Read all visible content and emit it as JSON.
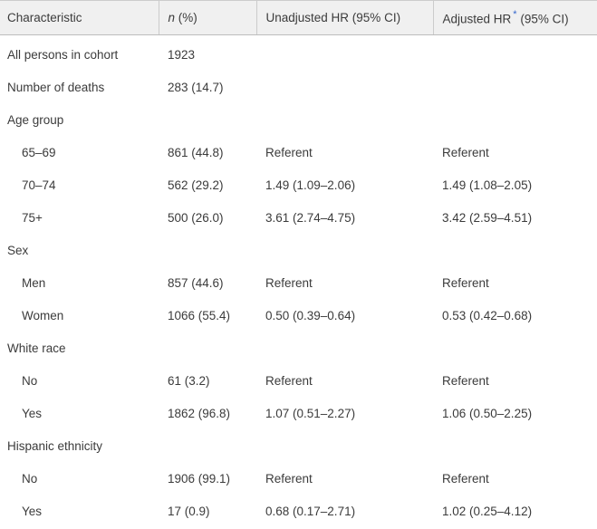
{
  "colors": {
    "header_background": "#f0f0f0",
    "header_border": "#cccccc",
    "text": "#3b3b3b",
    "footnote_link": "#3366cc"
  },
  "table": {
    "header": {
      "characteristic": "Characteristic",
      "n_italic": "n",
      "n_rest": " (%)",
      "unadjusted": "Unadjusted HR (95% CI)",
      "adjusted_pre": "Adjusted HR",
      "footnote_marker": "*",
      "adjusted_post": " (95% CI)"
    },
    "rows": [
      {
        "label": "All persons in cohort",
        "indent": false,
        "n": "1923",
        "unadjusted": "",
        "adjusted": ""
      },
      {
        "label": "Number of deaths",
        "indent": false,
        "n": "283 (14.7)",
        "unadjusted": "",
        "adjusted": ""
      },
      {
        "label": "Age group",
        "indent": false,
        "n": "",
        "unadjusted": "",
        "adjusted": ""
      },
      {
        "label": "65–69",
        "indent": true,
        "n": "861 (44.8)",
        "unadjusted": "Referent",
        "adjusted": "Referent"
      },
      {
        "label": "70–74",
        "indent": true,
        "n": "562 (29.2)",
        "unadjusted": "1.49 (1.09–2.06)",
        "adjusted": "1.49 (1.08–2.05)"
      },
      {
        "label": "75+",
        "indent": true,
        "n": "500 (26.0)",
        "unadjusted": "3.61 (2.74–4.75)",
        "adjusted": "3.42 (2.59–4.51)"
      },
      {
        "label": "Sex",
        "indent": false,
        "n": "",
        "unadjusted": "",
        "adjusted": ""
      },
      {
        "label": "Men",
        "indent": true,
        "n": "857 (44.6)",
        "unadjusted": "Referent",
        "adjusted": "Referent"
      },
      {
        "label": "Women",
        "indent": true,
        "n": "1066 (55.4)",
        "unadjusted": "0.50 (0.39–0.64)",
        "adjusted": "0.53 (0.42–0.68)"
      },
      {
        "label": "White race",
        "indent": false,
        "n": "",
        "unadjusted": "",
        "adjusted": ""
      },
      {
        "label": "No",
        "indent": true,
        "n": "61 (3.2)",
        "unadjusted": "Referent",
        "adjusted": "Referent"
      },
      {
        "label": "Yes",
        "indent": true,
        "n": "1862 (96.8)",
        "unadjusted": "1.07 (0.51–2.27)",
        "adjusted": "1.06 (0.50–2.25)"
      },
      {
        "label": "Hispanic ethnicity",
        "indent": false,
        "n": "",
        "unadjusted": "",
        "adjusted": ""
      },
      {
        "label": "No",
        "indent": true,
        "n": "1906 (99.1)",
        "unadjusted": "Referent",
        "adjusted": "Referent"
      },
      {
        "label": "Yes",
        "indent": true,
        "n": "17 (0.9)",
        "unadjusted": "0.68 (0.17–2.71)",
        "adjusted": "1.02 (0.25–4.12)"
      }
    ]
  }
}
